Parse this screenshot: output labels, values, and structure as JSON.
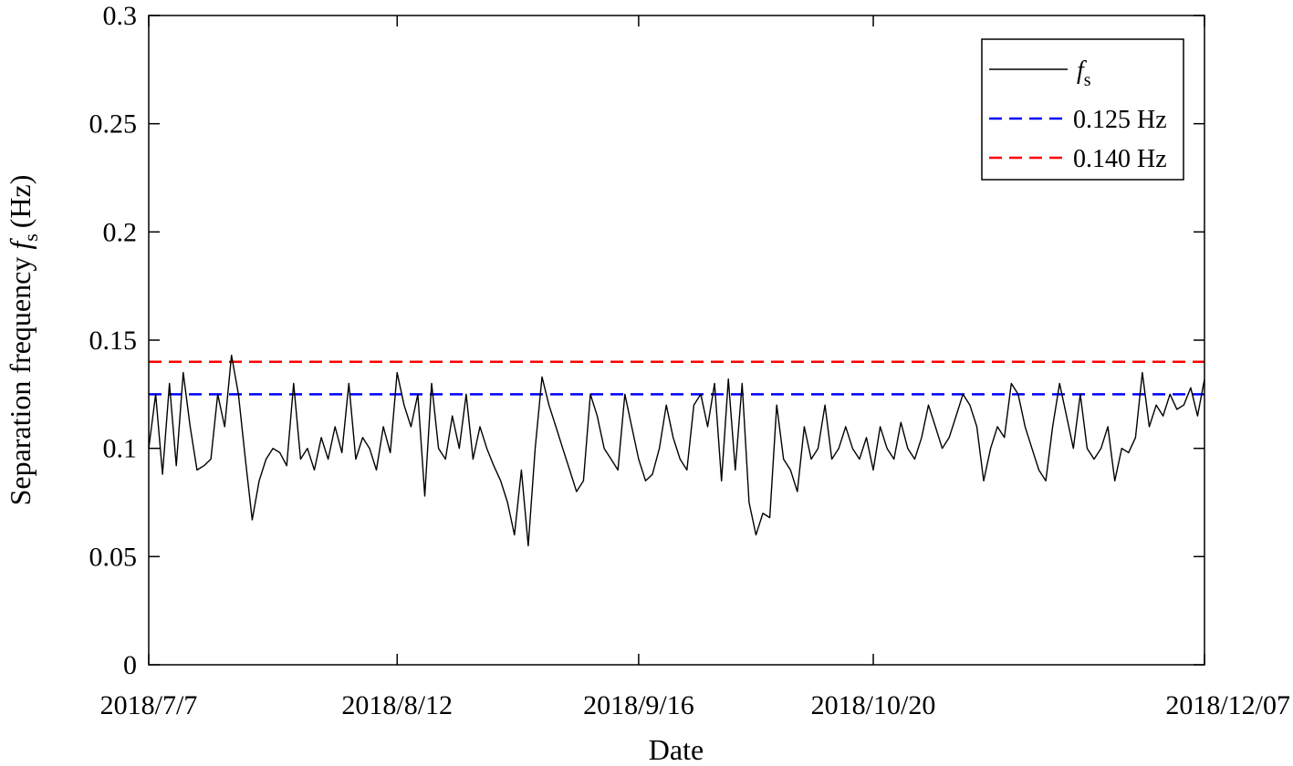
{
  "chart_data": {
    "type": "line",
    "xlabel": "Date",
    "ylabel": "Separation frequency",
    "ylabel_symbol": "f",
    "ylabel_subscript": "s",
    "ylabel_unit": "(Hz)",
    "xlim": [
      "2018-07-07",
      "2018-12-07"
    ],
    "ylim": [
      0,
      0.3
    ],
    "grid": false,
    "legend_position": "top-right",
    "x_ticks": [
      {
        "date": "2018-07-07",
        "label": "2018/7/7"
      },
      {
        "date": "2018-08-12",
        "label": "2018/8/12"
      },
      {
        "date": "2018-09-16",
        "label": "2018/9/16"
      },
      {
        "date": "2018-10-20",
        "label": "2018/10/20"
      },
      {
        "date": "2018-12-07",
        "label": "2018/12/07"
      }
    ],
    "y_ticks": [
      {
        "value": 0,
        "label": "0"
      },
      {
        "value": 0.05,
        "label": "0.05"
      },
      {
        "value": 0.1,
        "label": "0.1"
      },
      {
        "value": 0.15,
        "label": "0.15"
      },
      {
        "value": 0.2,
        "label": "0.2"
      },
      {
        "value": 0.25,
        "label": "0.25"
      },
      {
        "value": 0.3,
        "label": "0.3"
      }
    ],
    "series": [
      {
        "name": "f",
        "name_subscript": "s",
        "style": "solid",
        "color": "#000000",
        "points": [
          [
            "2018-07-07",
            0.1
          ],
          [
            "2018-07-08",
            0.125
          ],
          [
            "2018-07-09",
            0.088
          ],
          [
            "2018-07-10",
            0.13
          ],
          [
            "2018-07-11",
            0.092
          ],
          [
            "2018-07-12",
            0.135
          ],
          [
            "2018-07-13",
            0.11
          ],
          [
            "2018-07-14",
            0.09
          ],
          [
            "2018-07-15",
            0.092
          ],
          [
            "2018-07-16",
            0.095
          ],
          [
            "2018-07-17",
            0.125
          ],
          [
            "2018-07-18",
            0.11
          ],
          [
            "2018-07-19",
            0.143
          ],
          [
            "2018-07-20",
            0.125
          ],
          [
            "2018-07-21",
            0.095
          ],
          [
            "2018-07-22",
            0.067
          ],
          [
            "2018-07-23",
            0.085
          ],
          [
            "2018-07-24",
            0.095
          ],
          [
            "2018-07-25",
            0.1
          ],
          [
            "2018-07-26",
            0.098
          ],
          [
            "2018-07-27",
            0.092
          ],
          [
            "2018-07-28",
            0.13
          ],
          [
            "2018-07-29",
            0.095
          ],
          [
            "2018-07-30",
            0.1
          ],
          [
            "2018-07-31",
            0.09
          ],
          [
            "2018-08-01",
            0.105
          ],
          [
            "2018-08-02",
            0.095
          ],
          [
            "2018-08-03",
            0.11
          ],
          [
            "2018-08-04",
            0.098
          ],
          [
            "2018-08-05",
            0.13
          ],
          [
            "2018-08-06",
            0.095
          ],
          [
            "2018-08-07",
            0.105
          ],
          [
            "2018-08-08",
            0.1
          ],
          [
            "2018-08-09",
            0.09
          ],
          [
            "2018-08-10",
            0.11
          ],
          [
            "2018-08-11",
            0.098
          ],
          [
            "2018-08-12",
            0.135
          ],
          [
            "2018-08-13",
            0.12
          ],
          [
            "2018-08-14",
            0.11
          ],
          [
            "2018-08-15",
            0.125
          ],
          [
            "2018-08-16",
            0.078
          ],
          [
            "2018-08-17",
            0.13
          ],
          [
            "2018-08-18",
            0.1
          ],
          [
            "2018-08-19",
            0.095
          ],
          [
            "2018-08-20",
            0.115
          ],
          [
            "2018-08-21",
            0.1
          ],
          [
            "2018-08-22",
            0.125
          ],
          [
            "2018-08-23",
            0.095
          ],
          [
            "2018-08-24",
            0.11
          ],
          [
            "2018-08-25",
            0.1
          ],
          [
            "2018-08-26",
            0.092
          ],
          [
            "2018-08-27",
            0.085
          ],
          [
            "2018-08-28",
            0.075
          ],
          [
            "2018-08-29",
            0.06
          ],
          [
            "2018-08-30",
            0.09
          ],
          [
            "2018-08-31",
            0.055
          ],
          [
            "2018-09-01",
            0.1
          ],
          [
            "2018-09-02",
            0.133
          ],
          [
            "2018-09-03",
            0.12
          ],
          [
            "2018-09-04",
            0.11
          ],
          [
            "2018-09-05",
            0.1
          ],
          [
            "2018-09-06",
            0.09
          ],
          [
            "2018-09-07",
            0.08
          ],
          [
            "2018-09-08",
            0.085
          ],
          [
            "2018-09-09",
            0.125
          ],
          [
            "2018-09-10",
            0.115
          ],
          [
            "2018-09-11",
            0.1
          ],
          [
            "2018-09-12",
            0.095
          ],
          [
            "2018-09-13",
            0.09
          ],
          [
            "2018-09-14",
            0.125
          ],
          [
            "2018-09-15",
            0.11
          ],
          [
            "2018-09-16",
            0.095
          ],
          [
            "2018-09-17",
            0.085
          ],
          [
            "2018-09-18",
            0.088
          ],
          [
            "2018-09-19",
            0.1
          ],
          [
            "2018-09-20",
            0.12
          ],
          [
            "2018-09-21",
            0.105
          ],
          [
            "2018-09-22",
            0.095
          ],
          [
            "2018-09-23",
            0.09
          ],
          [
            "2018-09-24",
            0.12
          ],
          [
            "2018-09-25",
            0.125
          ],
          [
            "2018-09-26",
            0.11
          ],
          [
            "2018-09-27",
            0.13
          ],
          [
            "2018-09-28",
            0.085
          ],
          [
            "2018-09-29",
            0.132
          ],
          [
            "2018-09-30",
            0.09
          ],
          [
            "2018-10-01",
            0.13
          ],
          [
            "2018-10-02",
            0.075
          ],
          [
            "2018-10-03",
            0.06
          ],
          [
            "2018-10-04",
            0.07
          ],
          [
            "2018-10-05",
            0.068
          ],
          [
            "2018-10-06",
            0.12
          ],
          [
            "2018-10-07",
            0.095
          ],
          [
            "2018-10-08",
            0.09
          ],
          [
            "2018-10-09",
            0.08
          ],
          [
            "2018-10-10",
            0.11
          ],
          [
            "2018-10-11",
            0.095
          ],
          [
            "2018-10-12",
            0.1
          ],
          [
            "2018-10-13",
            0.12
          ],
          [
            "2018-10-14",
            0.095
          ],
          [
            "2018-10-15",
            0.1
          ],
          [
            "2018-10-16",
            0.11
          ],
          [
            "2018-10-17",
            0.1
          ],
          [
            "2018-10-18",
            0.095
          ],
          [
            "2018-10-19",
            0.105
          ],
          [
            "2018-10-20",
            0.09
          ],
          [
            "2018-10-21",
            0.11
          ],
          [
            "2018-10-22",
            0.1
          ],
          [
            "2018-10-23",
            0.095
          ],
          [
            "2018-10-24",
            0.112
          ],
          [
            "2018-10-25",
            0.1
          ],
          [
            "2018-10-26",
            0.095
          ],
          [
            "2018-10-27",
            0.105
          ],
          [
            "2018-10-28",
            0.12
          ],
          [
            "2018-10-29",
            0.11
          ],
          [
            "2018-10-30",
            0.1
          ],
          [
            "2018-10-31",
            0.105
          ],
          [
            "2018-11-01",
            0.115
          ],
          [
            "2018-11-02",
            0.125
          ],
          [
            "2018-11-03",
            0.12
          ],
          [
            "2018-11-04",
            0.11
          ],
          [
            "2018-11-05",
            0.085
          ],
          [
            "2018-11-06",
            0.1
          ],
          [
            "2018-11-07",
            0.11
          ],
          [
            "2018-11-08",
            0.105
          ],
          [
            "2018-11-09",
            0.13
          ],
          [
            "2018-11-10",
            0.125
          ],
          [
            "2018-11-11",
            0.11
          ],
          [
            "2018-11-12",
            0.1
          ],
          [
            "2018-11-13",
            0.09
          ],
          [
            "2018-11-14",
            0.085
          ],
          [
            "2018-11-15",
            0.11
          ],
          [
            "2018-11-16",
            0.13
          ],
          [
            "2018-11-17",
            0.115
          ],
          [
            "2018-11-18",
            0.1
          ],
          [
            "2018-11-19",
            0.125
          ],
          [
            "2018-11-20",
            0.1
          ],
          [
            "2018-11-21",
            0.095
          ],
          [
            "2018-11-22",
            0.1
          ],
          [
            "2018-11-23",
            0.11
          ],
          [
            "2018-11-24",
            0.085
          ],
          [
            "2018-11-25",
            0.1
          ],
          [
            "2018-11-26",
            0.098
          ],
          [
            "2018-11-27",
            0.105
          ],
          [
            "2018-11-28",
            0.135
          ],
          [
            "2018-11-29",
            0.11
          ],
          [
            "2018-11-30",
            0.12
          ],
          [
            "2018-12-01",
            0.115
          ],
          [
            "2018-12-02",
            0.125
          ],
          [
            "2018-12-03",
            0.118
          ],
          [
            "2018-12-04",
            0.12
          ],
          [
            "2018-12-05",
            0.128
          ],
          [
            "2018-12-06",
            0.115
          ],
          [
            "2018-12-07",
            0.132
          ]
        ]
      },
      {
        "name": "0.125 Hz",
        "style": "dashed",
        "color": "#0000ff",
        "value": 0.125
      },
      {
        "name": "0.140 Hz",
        "style": "dashed",
        "color": "#ff0000",
        "value": 0.14
      }
    ]
  }
}
